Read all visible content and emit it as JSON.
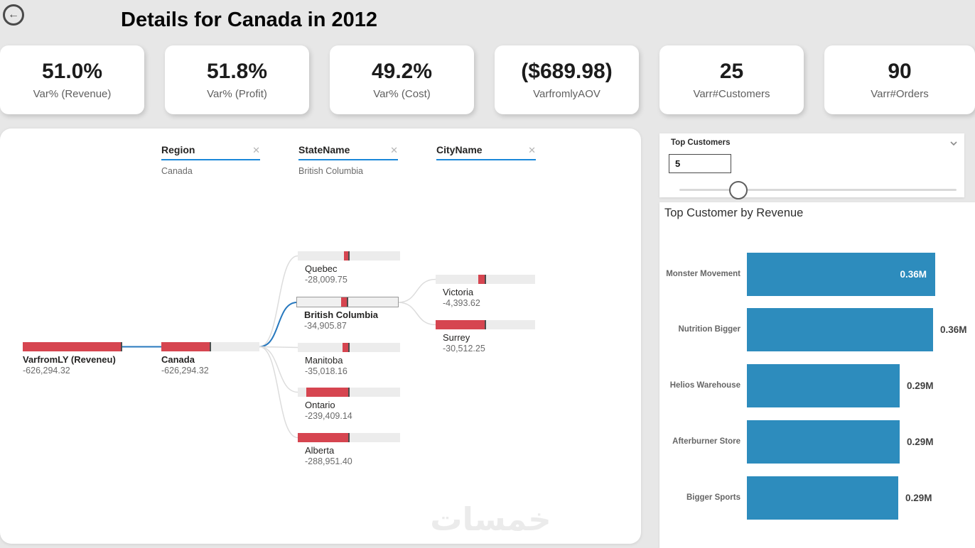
{
  "page": {
    "title": "Details for Canada in 2012"
  },
  "header": {
    "back_label": "back"
  },
  "kpi_cards": [
    {
      "value": "51.0%",
      "label": "Var% (Revenue)"
    },
    {
      "value": "51.8%",
      "label": "Var% (Profit)"
    },
    {
      "value": "49.2%",
      "label": "Var% (Cost)"
    },
    {
      "value": "($689.98)",
      "label": "VarfromlyAOV"
    },
    {
      "value": "25",
      "label": "Varr#Customers"
    },
    {
      "value": "90",
      "label": "Varr#Orders"
    }
  ],
  "decomposition_tree": {
    "columns": [
      {
        "field": "Region",
        "selected_value": "Canada"
      },
      {
        "field": "StateName",
        "selected_value": "British Columbia"
      },
      {
        "field": "CityName",
        "selected_value": ""
      }
    ],
    "close_icon": "✕",
    "nodes": [
      {
        "id": "root",
        "label": "VarfromLY (Reveneu)",
        "value_text": "-626,294.32",
        "value": -626294.32,
        "col": 0,
        "bold": true
      },
      {
        "id": "canada",
        "label": "Canada",
        "value_text": "-626,294.32",
        "value": -626294.32,
        "col": 1,
        "bold": true
      },
      {
        "id": "quebec",
        "label": "Quebec",
        "value_text": "-28,009.75",
        "value": -28009.75,
        "col": 2,
        "bold": false
      },
      {
        "id": "bc",
        "label": "British Columbia",
        "value_text": "-34,905.87",
        "value": -34905.87,
        "col": 2,
        "bold": true,
        "selected": true
      },
      {
        "id": "manitoba",
        "label": "Manitoba",
        "value_text": "-35,018.16",
        "value": -35018.16,
        "col": 2,
        "bold": false
      },
      {
        "id": "ontario",
        "label": "Ontario",
        "value_text": "-239,409.14",
        "value": -239409.14,
        "col": 2,
        "bold": false
      },
      {
        "id": "alberta",
        "label": "Alberta",
        "value_text": "-288,951.40",
        "value": -288951.4,
        "col": 2,
        "bold": false
      },
      {
        "id": "victoria",
        "label": "Victoria",
        "value_text": "-4,393.62",
        "value": -4393.62,
        "col": 3,
        "bold": false
      },
      {
        "id": "surrey",
        "label": "Surrey",
        "value_text": "-30,512.25",
        "value": -30512.25,
        "col": 3,
        "bold": false
      }
    ],
    "watermark": "خمسات"
  },
  "slicer": {
    "title": "Top Customers",
    "value": "5"
  },
  "chart_data": {
    "type": "bar",
    "orientation": "horizontal",
    "title": "Top Customer by Revenue",
    "categories": [
      "Monster Movement",
      "Nutrition Bigger",
      "Helios Warehouse",
      "Afterburner Store",
      "Bigger Sports"
    ],
    "values": [
      0.36,
      0.36,
      0.29,
      0.29,
      0.29
    ],
    "value_labels": [
      "0.36M",
      "0.36M",
      "0.29M",
      "0.29M",
      "0.29M"
    ],
    "unit": "millions",
    "xlim": [
      0,
      0.42
    ],
    "legend": "none",
    "grid": "off",
    "bar_color": "#2d8cbd"
  },
  "colors": {
    "page_bg": "#e7e7e7",
    "negative_red": "#d64550",
    "link_blue": "#2778be",
    "underline_blue": "#1b88d9",
    "bar_blue": "#2d8cbd"
  }
}
